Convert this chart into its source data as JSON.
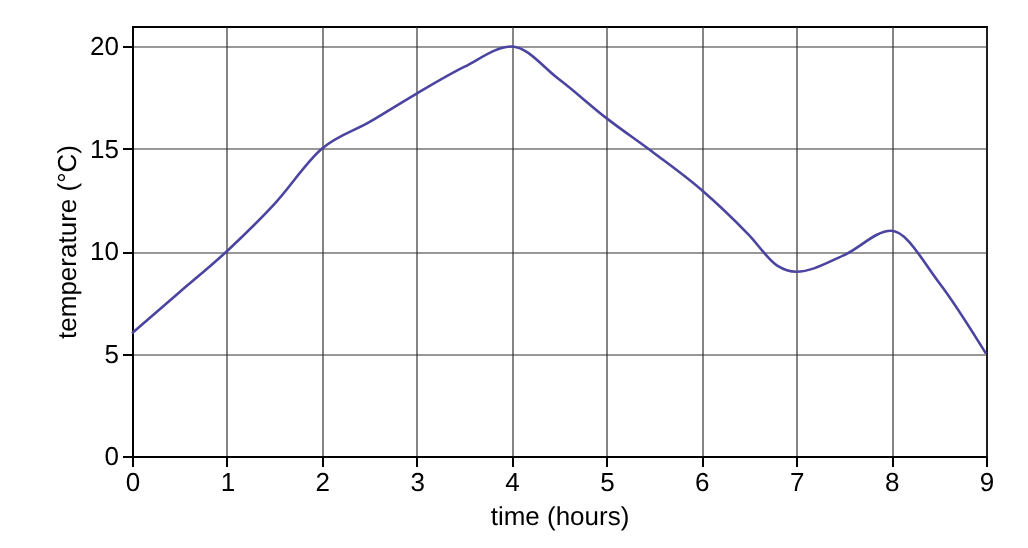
{
  "chart_data": {
    "type": "line",
    "xlabel": "time (hours)",
    "ylabel": "temperature (°C)",
    "x": [
      0,
      0.5,
      1,
      1.5,
      2,
      2.5,
      3,
      3.5,
      4,
      4.5,
      5,
      5.5,
      6,
      6.5,
      6.8,
      7,
      7.5,
      8,
      8.5,
      9
    ],
    "series": [
      {
        "color": "#4b44a0",
        "values": [
          6,
          8,
          10,
          12.3,
          15,
          16.3,
          17.7,
          19,
          20,
          18.4,
          16.5,
          14.8,
          13,
          10.8,
          9.3,
          9,
          9.8,
          11,
          8.5,
          5
        ]
      }
    ],
    "xlim": [
      0,
      9
    ],
    "ylim": [
      0,
      21
    ],
    "xticks": [
      0,
      1,
      2,
      3,
      4,
      5,
      6,
      7,
      8,
      9
    ],
    "yticks": [
      0,
      5,
      10,
      15,
      20
    ],
    "grid": true,
    "line_style": "solid"
  }
}
